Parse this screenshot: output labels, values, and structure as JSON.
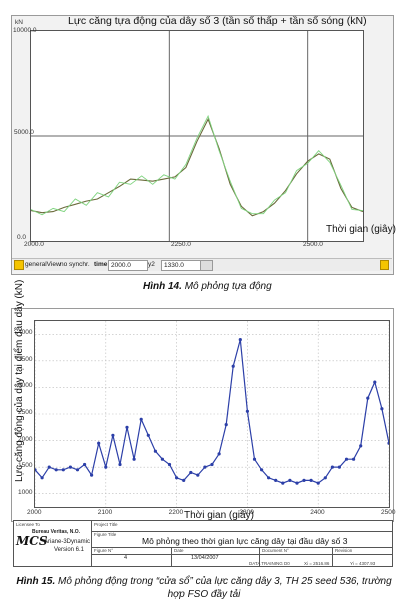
{
  "figures": [
    {
      "plot_title": "Lực căng tựa động của dây số 3 (tần số thấp + tần số sóng (kN)",
      "y_unit": "kN",
      "y_ticks": [
        "10000.0",
        "5000.0",
        "0.0"
      ],
      "x_ticks": [
        "2000.0",
        "2250.0",
        "2500.0"
      ],
      "x_label": "Thời gian (giây)",
      "toolbar": {
        "view": "generalView",
        "sync": "no synchr.",
        "time_label": "time:",
        "time_value": "2000.0",
        "y2_label": "y2",
        "y2_value": "1330.0"
      },
      "caption_bold": "Hình 14.",
      "caption_text": "Mô phỏng tựa động"
    },
    {
      "y_label": "Lực căng động của dây tại điểm đầu dây (kN)",
      "x_label": "Thời gian (giây)",
      "y_ticks": [
        "4000",
        "3500",
        "3000",
        "2500",
        "2000",
        "1500",
        "1000"
      ],
      "x_ticks": [
        "2000",
        "2100",
        "2200",
        "2300",
        "2400",
        "2500"
      ],
      "title_block": {
        "licensee_label": "Licensee To",
        "licensee": "Bureau Veritas, N.O.",
        "program": "Ariane-3Dynamic",
        "version": "Version 6.1",
        "logo": "MCS",
        "project_title_label": "Project Title",
        "figure_title_label": "Figure Title",
        "figure_title": "Mô phỏng theo thời gian lực căng dây tại đầu dây số 3",
        "figure_no_label": "Figure N°",
        "figure_no": "4",
        "date_label": "Date",
        "date": "13/04/2007",
        "document_label": "Document N°",
        "revision_label": "Revision",
        "footer_left": "DATA TRAINING D0",
        "footer_mid": "Xi = 2516.86",
        "footer_right": "Yi = 4307.93"
      },
      "caption_bold": "Hình 15.",
      "caption_text": "Mô phỏng động trong “cửa sổ” của lực căng dây 3, TH 25 seed 536, trường hợp FSO đầy tải"
    }
  ],
  "chart_data": [
    {
      "type": "line",
      "title": "Lực căng tựa động của dây số 3 (tần số thấp + tần số sóng (kN)",
      "xlabel": "Thời gian (giây)",
      "ylabel": "kN",
      "xlim": [
        2000,
        2600
      ],
      "ylim": [
        0,
        10000
      ],
      "grid": true,
      "colors": {
        "series_a": "#6a6a3a",
        "series_b": "#7ed37e"
      },
      "series": [
        {
          "x": [
            2000,
            2020,
            2040,
            2060,
            2080,
            2100,
            2120,
            2140,
            2160,
            2180,
            2200,
            2220,
            2240,
            2260,
            2280,
            2300,
            2320,
            2340,
            2360,
            2380,
            2400,
            2420,
            2440,
            2460,
            2480,
            2500,
            2520,
            2540,
            2560,
            2580,
            2600
          ],
          "values": [
            1450,
            1350,
            1400,
            1600,
            1750,
            1900,
            2000,
            2300,
            2600,
            2950,
            2900,
            2850,
            2950,
            3050,
            3500,
            4750,
            5800,
            4400,
            2700,
            1650,
            1200,
            1400,
            1800,
            2400,
            3200,
            3800,
            4150,
            3900,
            2500,
            1600,
            1400
          ]
        },
        {
          "x": [
            2000,
            2020,
            2040,
            2060,
            2080,
            2100,
            2120,
            2140,
            2160,
            2180,
            2200,
            2220,
            2240,
            2260,
            2280,
            2300,
            2320,
            2340,
            2360,
            2380,
            2400,
            2420,
            2440,
            2460,
            2480,
            2500,
            2520,
            2540,
            2560,
            2580,
            2600
          ],
          "values": [
            1500,
            1250,
            1550,
            1400,
            2000,
            1700,
            2300,
            2100,
            2800,
            2700,
            3100,
            2700,
            3150,
            2950,
            3650,
            4900,
            5950,
            4300,
            2850,
            1550,
            1300,
            1300,
            1950,
            2300,
            3350,
            3700,
            4300,
            3750,
            2650,
            1500,
            1450
          ]
        }
      ]
    },
    {
      "type": "line",
      "xlabel": "Thời gian (giây)",
      "ylabel": "Lực căng động của dây tại điểm đầu dây (kN)",
      "xlim": [
        2000,
        2500
      ],
      "ylim": [
        750,
        4250
      ],
      "grid": true,
      "colors": {
        "series": "#2c3fa8"
      },
      "series": [
        {
          "x": [
            2000,
            2010,
            2020,
            2030,
            2040,
            2050,
            2060,
            2070,
            2080,
            2090,
            2100,
            2110,
            2120,
            2130,
            2140,
            2150,
            2160,
            2170,
            2180,
            2190,
            2200,
            2210,
            2220,
            2230,
            2240,
            2250,
            2260,
            2270,
            2280,
            2290,
            2300,
            2310,
            2320,
            2330,
            2340,
            2350,
            2360,
            2370,
            2380,
            2390,
            2400,
            2410,
            2420,
            2430,
            2440,
            2450,
            2460,
            2470,
            2480,
            2490,
            2500
          ],
          "values": [
            1450,
            1300,
            1500,
            1450,
            1450,
            1500,
            1450,
            1550,
            1350,
            1950,
            1500,
            2100,
            1550,
            2250,
            1650,
            2400,
            2100,
            1800,
            1650,
            1550,
            1300,
            1250,
            1400,
            1350,
            1500,
            1550,
            1750,
            2300,
            3400,
            3900,
            2550,
            1650,
            1450,
            1300,
            1250,
            1200,
            1250,
            1200,
            1250,
            1250,
            1200,
            1300,
            1500,
            1500,
            1650,
            1650,
            1900,
            2800,
            3100,
            2600,
            1950
          ]
        }
      ]
    }
  ]
}
